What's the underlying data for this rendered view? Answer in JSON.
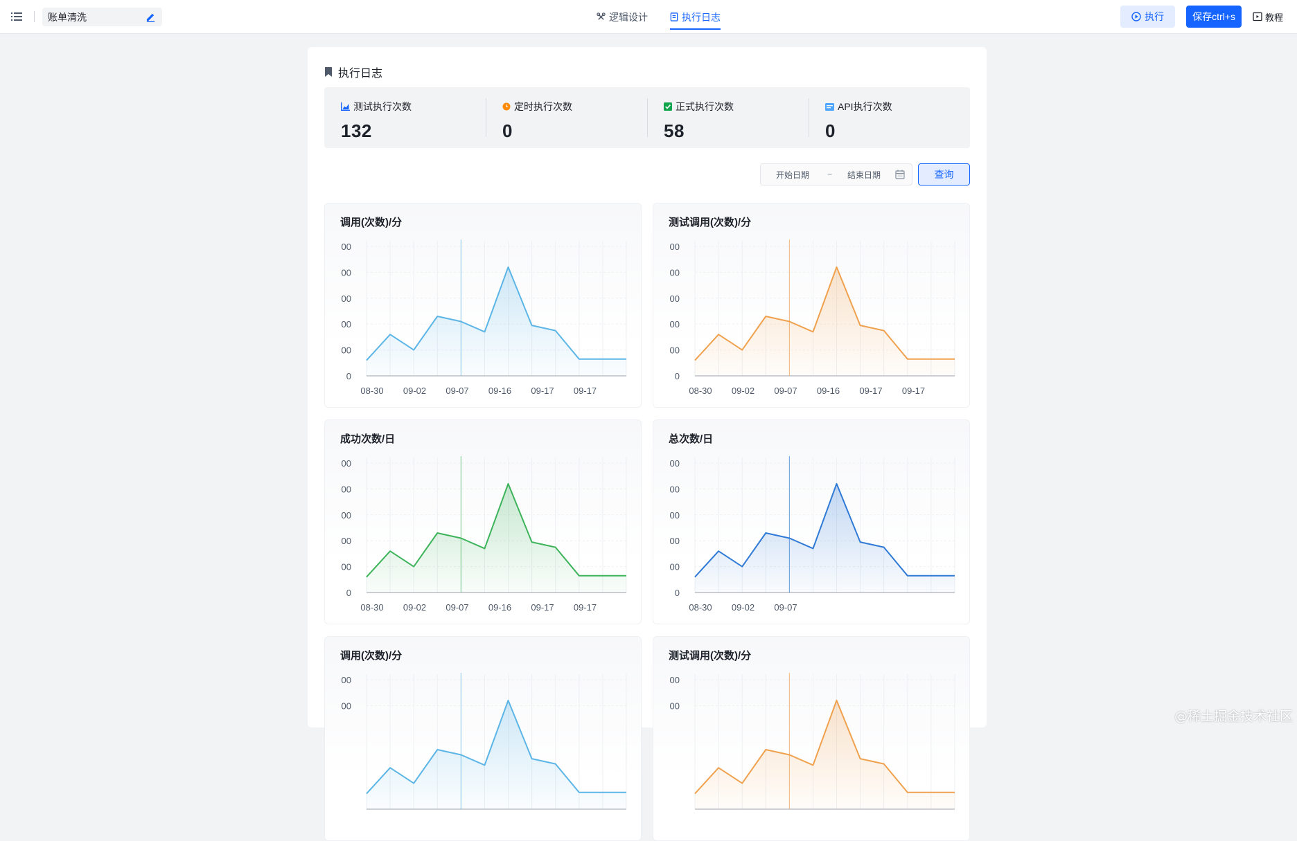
{
  "header": {
    "doc_name": "账单清洗",
    "tabs": [
      {
        "label": "逻辑设计",
        "icon": "logic-icon",
        "active": false
      },
      {
        "label": "执行日志",
        "icon": "log-icon",
        "active": true
      }
    ],
    "run_label": "执行",
    "save_label": "保存ctrl+s",
    "tutorial_label": "教程"
  },
  "page": {
    "title": "执行日志",
    "stats": [
      {
        "label": "测试执行次数",
        "value": "132",
        "icon": "bar-chart-icon",
        "color": "#1664ff"
      },
      {
        "label": "定时执行次数",
        "value": "0",
        "icon": "clock-icon",
        "color": "#ff8a00"
      },
      {
        "label": "正式执行次数",
        "value": "58",
        "icon": "check-icon",
        "color": "#14a44d"
      },
      {
        "label": "API执行次数",
        "value": "0",
        "icon": "api-icon",
        "color": "#4ea6ff"
      }
    ],
    "filter": {
      "start_placeholder": "开始日期",
      "separator": "~",
      "end_placeholder": "结束日期",
      "query_label": "查询"
    }
  },
  "chart_data": [
    {
      "type": "area",
      "title": "调用(次数)/分",
      "color": "#5bb5e6",
      "y_ticks": [
        "00",
        "00",
        "00",
        "00",
        "00",
        "0"
      ],
      "x_tick_labels": [
        "08-30",
        "09-02",
        "09-07",
        "09-16",
        "09-17",
        "09-17"
      ],
      "values": [
        0.6,
        1.6,
        1.0,
        2.3,
        2.1,
        1.7,
        4.2,
        1.95,
        1.75,
        0.65,
        0.65,
        0.65
      ],
      "ylim": [
        0,
        5
      ],
      "cursor_index": 4
    },
    {
      "type": "area",
      "title": "测试调用(次数)/分",
      "color": "#f0a14e",
      "y_ticks": [
        "00",
        "00",
        "00",
        "00",
        "00",
        "0"
      ],
      "x_tick_labels": [
        "08-30",
        "09-02",
        "09-07",
        "09-16",
        "09-17",
        "09-17"
      ],
      "values": [
        0.6,
        1.6,
        1.0,
        2.3,
        2.1,
        1.7,
        4.2,
        1.95,
        1.75,
        0.65,
        0.65,
        0.65
      ],
      "ylim": [
        0,
        5
      ],
      "cursor_index": 4
    },
    {
      "type": "area",
      "title": "成功次数/日",
      "color": "#3db35a",
      "y_ticks": [
        "00",
        "00",
        "00",
        "00",
        "00",
        "0"
      ],
      "x_tick_labels": [
        "08-30",
        "09-02",
        "09-07",
        "09-16",
        "09-17",
        "09-17"
      ],
      "values": [
        0.6,
        1.6,
        1.0,
        2.3,
        2.1,
        1.7,
        4.2,
        1.95,
        1.75,
        0.65,
        0.65,
        0.65
      ],
      "ylim": [
        0,
        5
      ],
      "cursor_index": 4
    },
    {
      "type": "area",
      "title": "总次数/日",
      "color": "#2f7ad6",
      "y_ticks": [
        "00",
        "00",
        "00",
        "00",
        "00",
        "0"
      ],
      "x_tick_labels": [
        "08-30",
        "09-02",
        "09-07"
      ],
      "values": [
        0.6,
        1.6,
        1.0,
        2.3,
        2.1,
        1.7,
        4.2,
        1.95,
        1.75,
        0.65,
        0.65,
        0.65
      ],
      "ylim": [
        0,
        5
      ],
      "cursor_index": 4
    },
    {
      "type": "area",
      "title": "调用(次数)/分",
      "color": "#5bb5e6",
      "y_ticks": [
        "00",
        "00"
      ],
      "x_tick_labels": [],
      "values": [
        0.6,
        1.6,
        1.0,
        2.3,
        2.1,
        1.7,
        4.2,
        1.95,
        1.75,
        0.65,
        0.65,
        0.65
      ],
      "ylim": [
        0,
        5
      ],
      "cursor_index": 4
    },
    {
      "type": "area",
      "title": "测试调用(次数)/分",
      "color": "#f0a14e",
      "y_ticks": [
        "00",
        "00"
      ],
      "x_tick_labels": [],
      "values": [
        0.6,
        1.6,
        1.0,
        2.3,
        2.1,
        1.7,
        4.2,
        1.95,
        1.75,
        0.65,
        0.65,
        0.65
      ],
      "ylim": [
        0,
        5
      ],
      "cursor_index": 4
    }
  ],
  "watermark": "@稀土掘金技术社区"
}
